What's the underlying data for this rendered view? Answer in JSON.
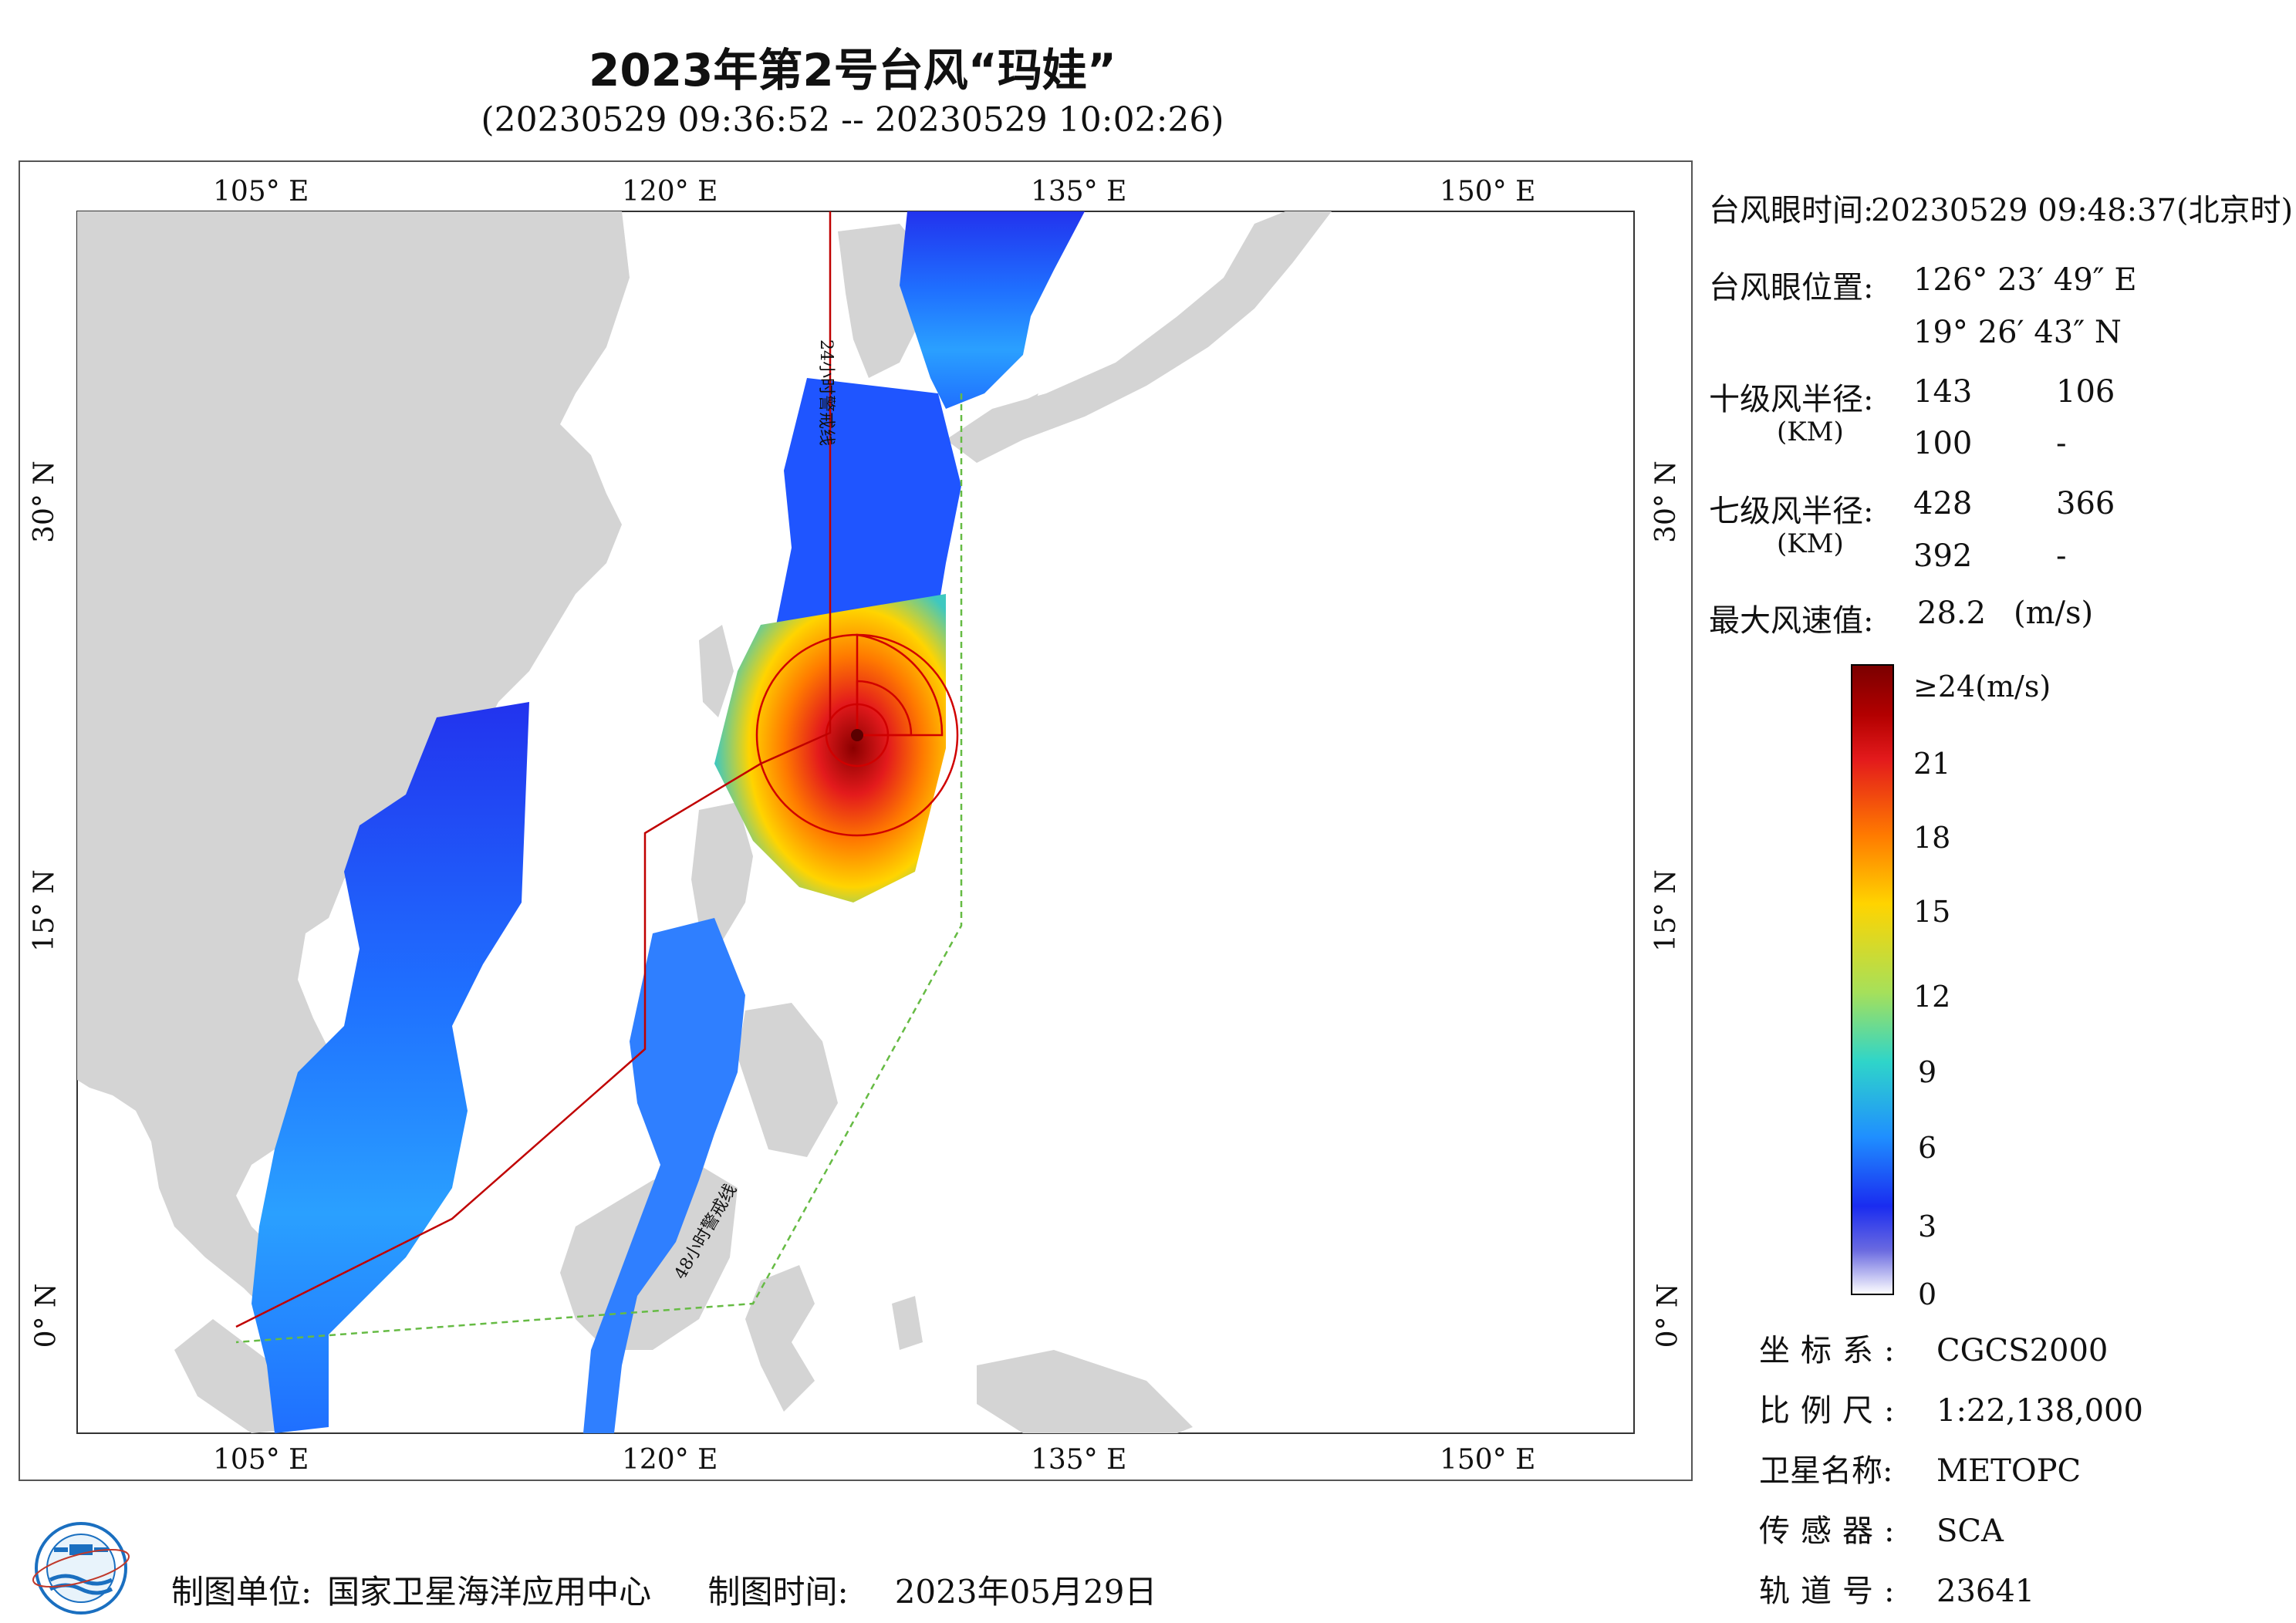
{
  "title": "2023年第2号台风“玛娃”",
  "subtitle": "(20230529 09:36:52 -- 20230529 10:02:26)",
  "map": {
    "top_ticks": [
      "105° E",
      "120° E",
      "135° E",
      "150° E"
    ],
    "bottom_ticks": [
      "105° E",
      "120° E",
      "135° E",
      "150° E"
    ],
    "left_ticks": [
      "30° N",
      "15° N",
      "0° N"
    ],
    "right_ticks": [
      "30° N",
      "15° N",
      "0° N"
    ],
    "warning_line_24h": "24小时警戒线",
    "warning_line_48h": "48小时警戒线",
    "colors": {
      "land": "#d4d4d4",
      "sea": "#ffffff",
      "warning_24": "#c00000",
      "warning_48": "#66bb44",
      "wind_circle": "#d00000"
    }
  },
  "info": {
    "eye_time_label": "台风眼时间:",
    "eye_time_value": "20230529 09:48:37(北京时)",
    "eye_pos_label": "台风眼位置:",
    "eye_lon": "126° 23′ 49″ E",
    "eye_lat": "19° 26′ 43″ N",
    "r10_label": "十级风半径:",
    "r10_unit": "(KM)",
    "r10_values": [
      "143",
      "106",
      "100",
      "-"
    ],
    "r7_label": "七级风半径:",
    "r7_unit": "(KM)",
    "r7_values": [
      "428",
      "366",
      "392",
      "-"
    ],
    "max_wind_label": "最大风速值:",
    "max_wind_value": "28.2",
    "max_wind_unit": "(m/s)"
  },
  "colorbar": {
    "top_label": "≥24(m/s)",
    "ticks": [
      "21",
      "18",
      "15",
      "12",
      "9",
      "6",
      "3",
      "0"
    ],
    "colors": [
      "#8b0000",
      "#e31a1c",
      "#ff6600",
      "#ffcc00",
      "#a6e05a",
      "#2fd5c9",
      "#1f8fff",
      "#1a3cff",
      "#2a10c0",
      "#ffffff"
    ]
  },
  "meta": [
    {
      "key": "坐标系:",
      "value": "CGCS2000"
    },
    {
      "key": "比例尺:",
      "value": "1:22,138,000"
    },
    {
      "key": "卫星名称:",
      "value": "METOPC"
    },
    {
      "key": "传感器:",
      "value": "SCA"
    },
    {
      "key": "轨道号:",
      "value": "23641"
    }
  ],
  "footer": {
    "unit_label": "制图单位:",
    "unit_value": "国家卫星海洋应用中心",
    "time_label": "制图时间:",
    "time_value": "2023年05月29日"
  }
}
